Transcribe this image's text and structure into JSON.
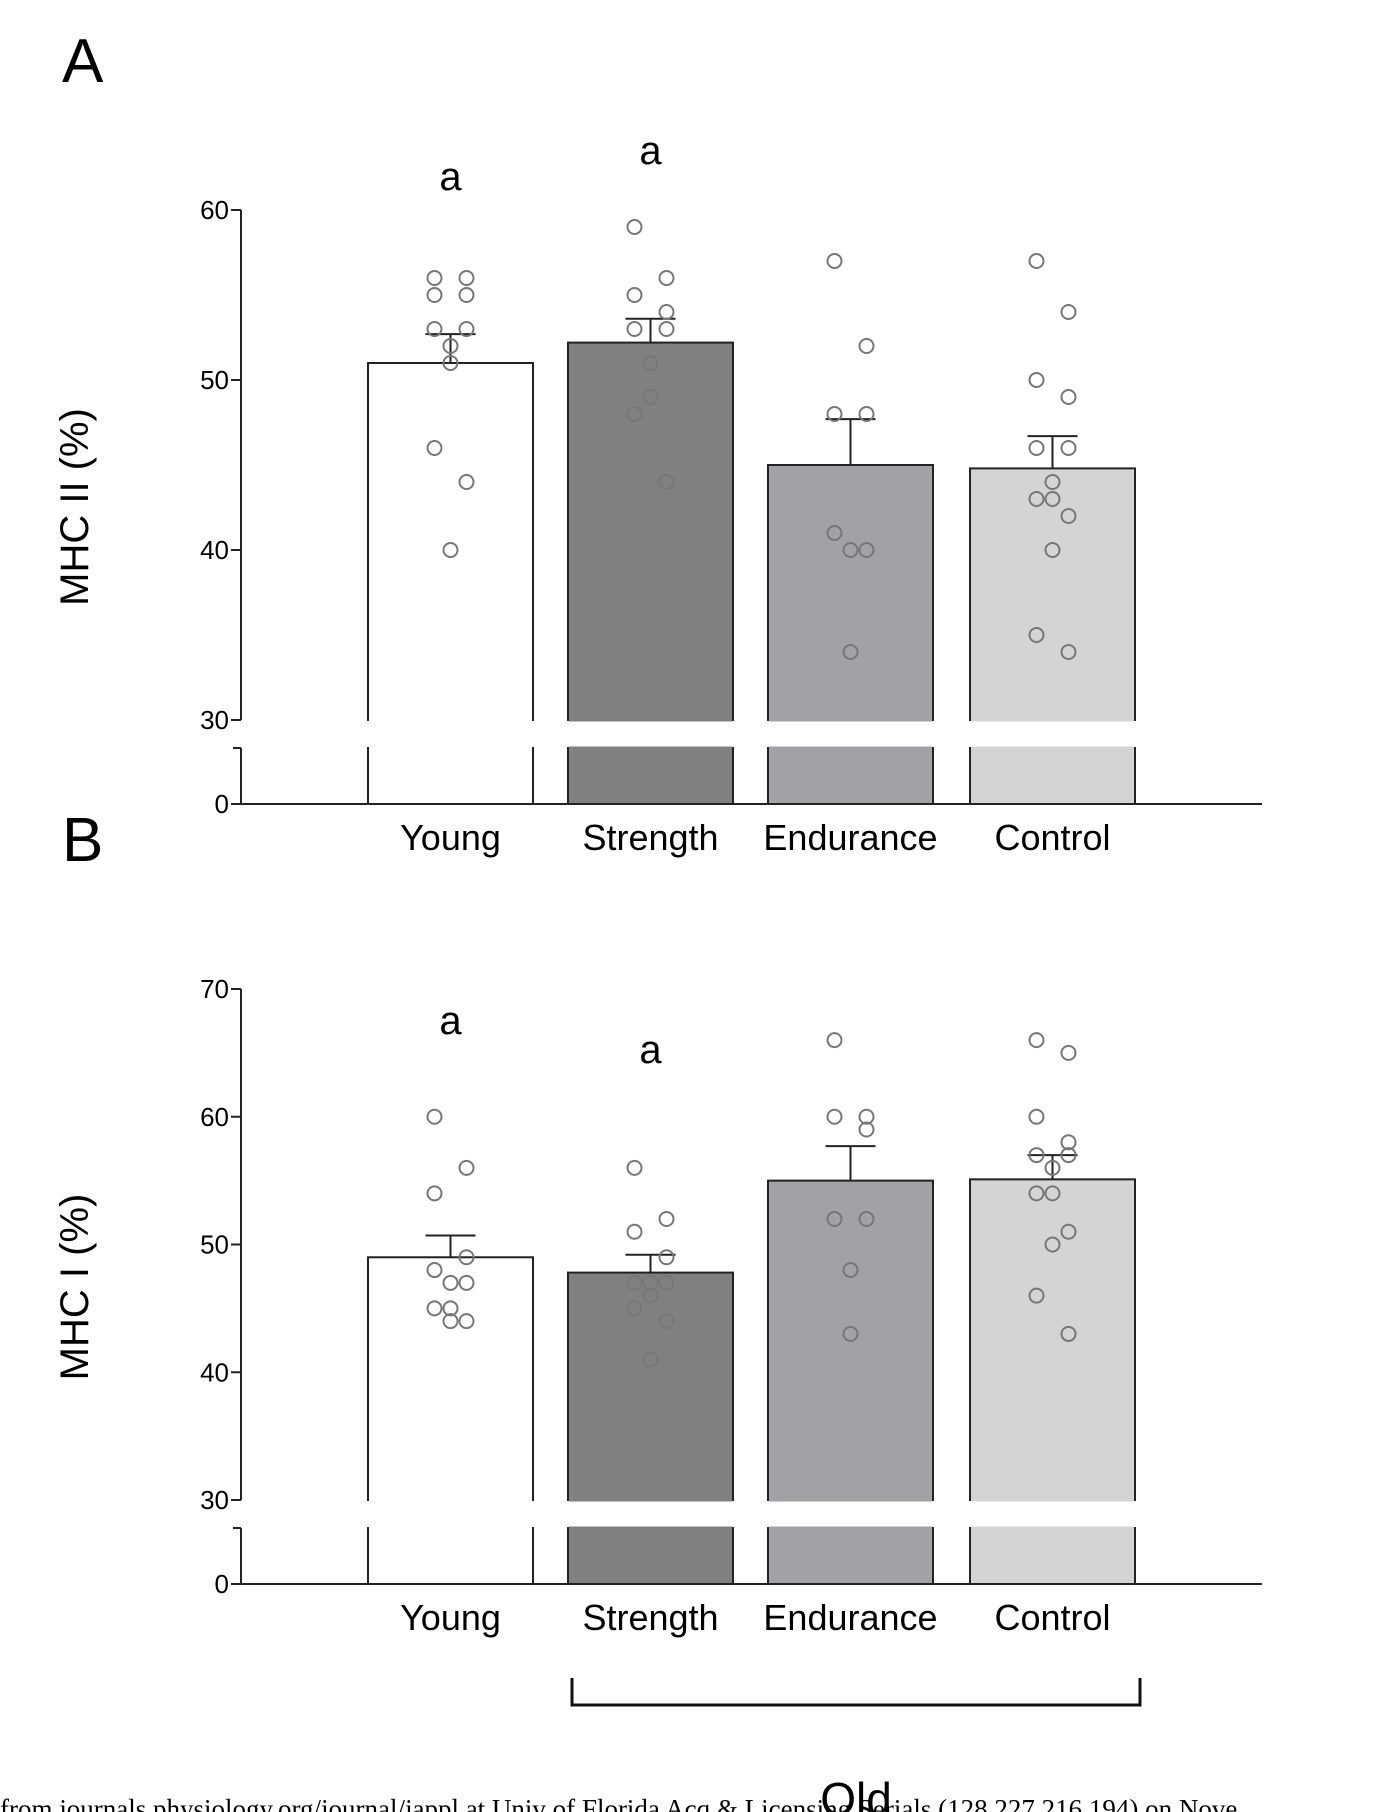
{
  "chart_data": [
    {
      "type": "bar",
      "panel_label": "A",
      "ylabel": "MHC II (%)",
      "categories": [
        "Young",
        "Strength",
        "Endurance",
        "Control"
      ],
      "values": [
        51,
        52.2,
        45,
        44.8
      ],
      "errors": [
        1.7,
        1.4,
        2.7,
        1.9
      ],
      "annotations": [
        "a",
        "a",
        "",
        ""
      ],
      "points": [
        [
          56,
          56,
          55,
          55,
          53,
          53,
          52,
          51,
          46,
          44,
          40
        ],
        [
          59,
          56,
          55,
          54,
          53,
          53,
          51,
          49,
          48,
          44
        ],
        [
          57,
          52,
          48,
          48,
          41,
          40,
          40,
          34
        ],
        [
          57,
          54,
          50,
          49,
          46,
          46,
          44,
          43,
          43,
          42,
          40,
          35,
          34
        ]
      ],
      "yticks": [
        0,
        30,
        40,
        50,
        60
      ],
      "ylim": [
        0,
        60
      ],
      "axis_break": [
        0,
        30
      ],
      "colors": [
        "#ffffff",
        "#808080",
        "#a2a2a6",
        "#d4d4d4"
      ]
    },
    {
      "type": "bar",
      "panel_label": "B",
      "ylabel": "MHC I (%)",
      "categories": [
        "Young",
        "Strength",
        "Endurance",
        "Control"
      ],
      "values": [
        49,
        47.8,
        55,
        55.1
      ],
      "errors": [
        1.7,
        1.4,
        2.7,
        1.9
      ],
      "annotations": [
        "a",
        "a",
        "",
        ""
      ],
      "points": [
        [
          60,
          56,
          54,
          49,
          48,
          47,
          47,
          45,
          45,
          44,
          44
        ],
        [
          56,
          52,
          51,
          49,
          47,
          47,
          47,
          46,
          45,
          44,
          41
        ],
        [
          66,
          60,
          60,
          59,
          52,
          52,
          48,
          43
        ],
        [
          66,
          65,
          60,
          58,
          57,
          57,
          56,
          54,
          54,
          51,
          50,
          46,
          43
        ]
      ],
      "yticks": [
        0,
        30,
        40,
        50,
        60,
        70
      ],
      "ylim": [
        0,
        70
      ],
      "axis_break": [
        0,
        30
      ],
      "colors": [
        "#ffffff",
        "#808080",
        "#a2a2a6",
        "#d4d4d4"
      ]
    }
  ],
  "group_label": "Old",
  "footer": "from journals.physiology.org/journal/jappl at Univ of Florida Acq & Licensing Serials (128.227.216.194) on Nove"
}
